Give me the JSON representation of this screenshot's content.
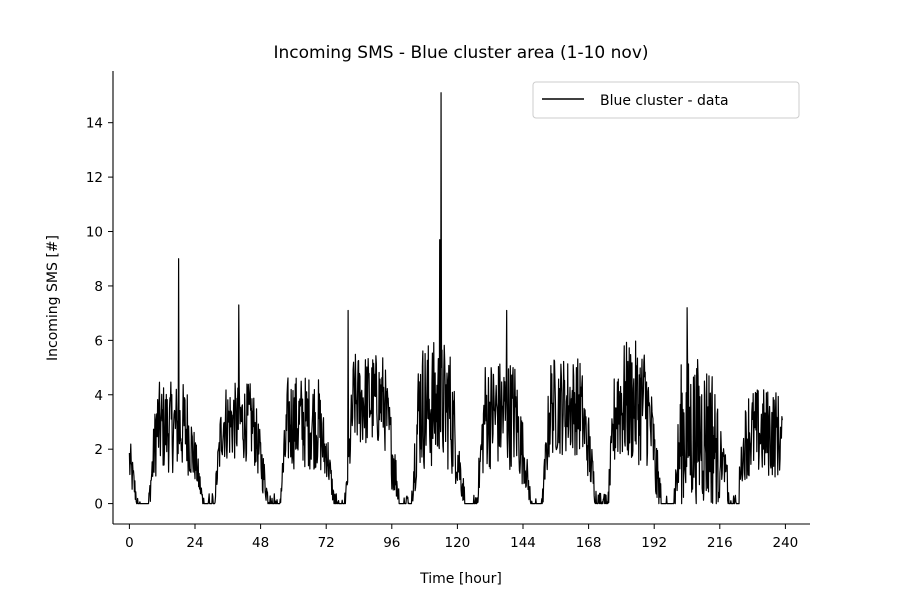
{
  "chart_data": {
    "type": "line",
    "title": "Incoming SMS - Blue cluster area (1-10 nov)",
    "xlabel": "Time [hour]",
    "ylabel": "Incoming SMS [#]",
    "xlim": [
      -6,
      249
    ],
    "ylim": [
      -0.75,
      15.9
    ],
    "xticks": [
      0,
      24,
      48,
      72,
      96,
      120,
      144,
      168,
      192,
      216,
      240
    ],
    "xtick_labels": [
      "0",
      "24",
      "48",
      "72",
      "96",
      "120",
      "144",
      "168",
      "192",
      "216",
      "240"
    ],
    "yticks": [
      0,
      2,
      4,
      6,
      8,
      10,
      12,
      14
    ],
    "ytick_labels": [
      "0",
      "2",
      "4",
      "6",
      "8",
      "10",
      "12",
      "14"
    ],
    "grid": false,
    "legend_position": "upper-right",
    "series": [
      {
        "name": "Blue cluster - data",
        "color": "#000000",
        "x_step": 0.1667,
        "peaks": [
          {
            "x": 18,
            "y": 9.0
          },
          {
            "x": 40,
            "y": 7.3
          },
          {
            "x": 80,
            "y": 7.1
          },
          {
            "x": 113.5,
            "y": 9.7
          },
          {
            "x": 114,
            "y": 15.1
          },
          {
            "x": 138,
            "y": 7.1
          },
          {
            "x": 204,
            "y": 7.2
          }
        ],
        "daily_profile": [
          {
            "day": 1,
            "night_min": 0.0,
            "day_level": 2.8,
            "day_max": 4.7
          },
          {
            "day": 2,
            "night_min": 0.0,
            "day_level": 3.0,
            "day_max": 4.6
          },
          {
            "day": 3,
            "night_min": 0.0,
            "day_level": 3.0,
            "day_max": 5.0
          },
          {
            "day": 4,
            "night_min": 0.0,
            "day_level": 3.8,
            "day_max": 5.8
          },
          {
            "day": 5,
            "night_min": 0.0,
            "day_level": 3.6,
            "day_max": 6.5
          },
          {
            "day": 6,
            "night_min": 0.0,
            "day_level": 3.3,
            "day_max": 5.7
          },
          {
            "day": 7,
            "night_min": 0.0,
            "day_level": 3.6,
            "day_max": 5.7
          },
          {
            "day": 8,
            "night_min": 0.0,
            "day_level": 3.7,
            "day_max": 6.4
          },
          {
            "day": 9,
            "night_min": 0.0,
            "day_level": 2.6,
            "day_max": 6.0
          },
          {
            "day": 10,
            "night_min": 1.0,
            "day_level": 2.6,
            "day_max": 4.5
          }
        ]
      }
    ]
  }
}
